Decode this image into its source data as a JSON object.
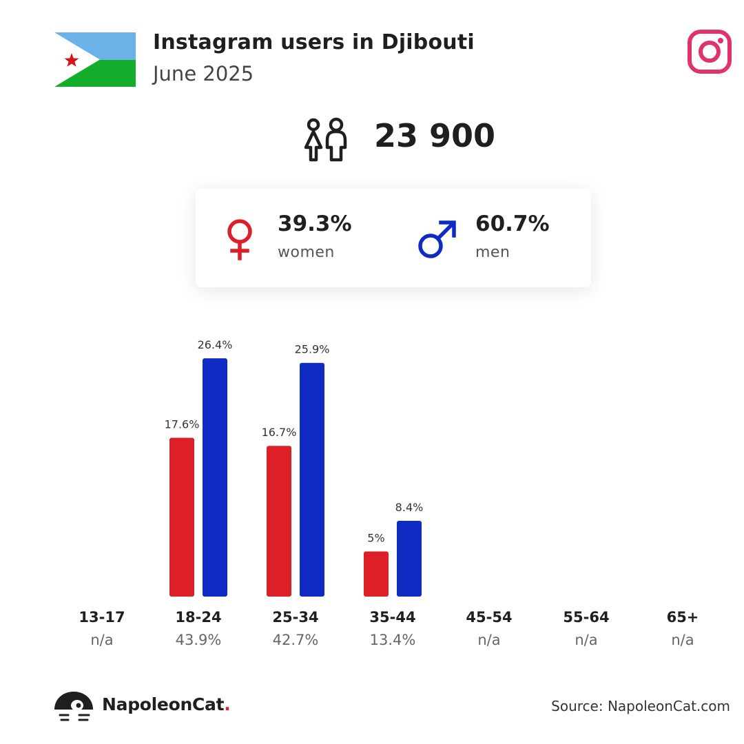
{
  "header": {
    "title": "Instagram users in Djibouti",
    "subtitle": "June 2025"
  },
  "total_users": "23 900",
  "gender": {
    "women_pct": "39.3%",
    "women_label": "women",
    "men_pct": "60.7%",
    "men_label": "men"
  },
  "colors": {
    "women": "#dd1f27",
    "men": "#0f2bc2",
    "instagram": "#e0336b"
  },
  "icons": [
    "djibouti-flag",
    "instagram-icon",
    "users-icon",
    "female-icon",
    "male-icon",
    "napoleoncat-logo-icon"
  ],
  "chart_data": {
    "type": "bar",
    "categories": [
      "13-17",
      "18-24",
      "25-34",
      "35-44",
      "45-54",
      "55-64",
      "65+"
    ],
    "category_totals": [
      "n/a",
      "43.9%",
      "42.7%",
      "13.4%",
      "n/a",
      "n/a",
      "n/a"
    ],
    "series": [
      {
        "name": "women",
        "values": [
          null,
          17.6,
          16.7,
          5,
          null,
          null,
          null
        ],
        "labels": [
          "",
          "17.6%",
          "16.7%",
          "5%",
          "",
          "",
          ""
        ]
      },
      {
        "name": "men",
        "values": [
          null,
          26.4,
          25.9,
          8.4,
          null,
          null,
          null
        ],
        "labels": [
          "",
          "26.4%",
          "25.9%",
          "8.4%",
          "",
          "",
          ""
        ]
      }
    ]
  },
  "footer": {
    "brand_name": "NapoleonCat",
    "brand_dot": ".",
    "source": "Source: NapoleonCat.com"
  }
}
